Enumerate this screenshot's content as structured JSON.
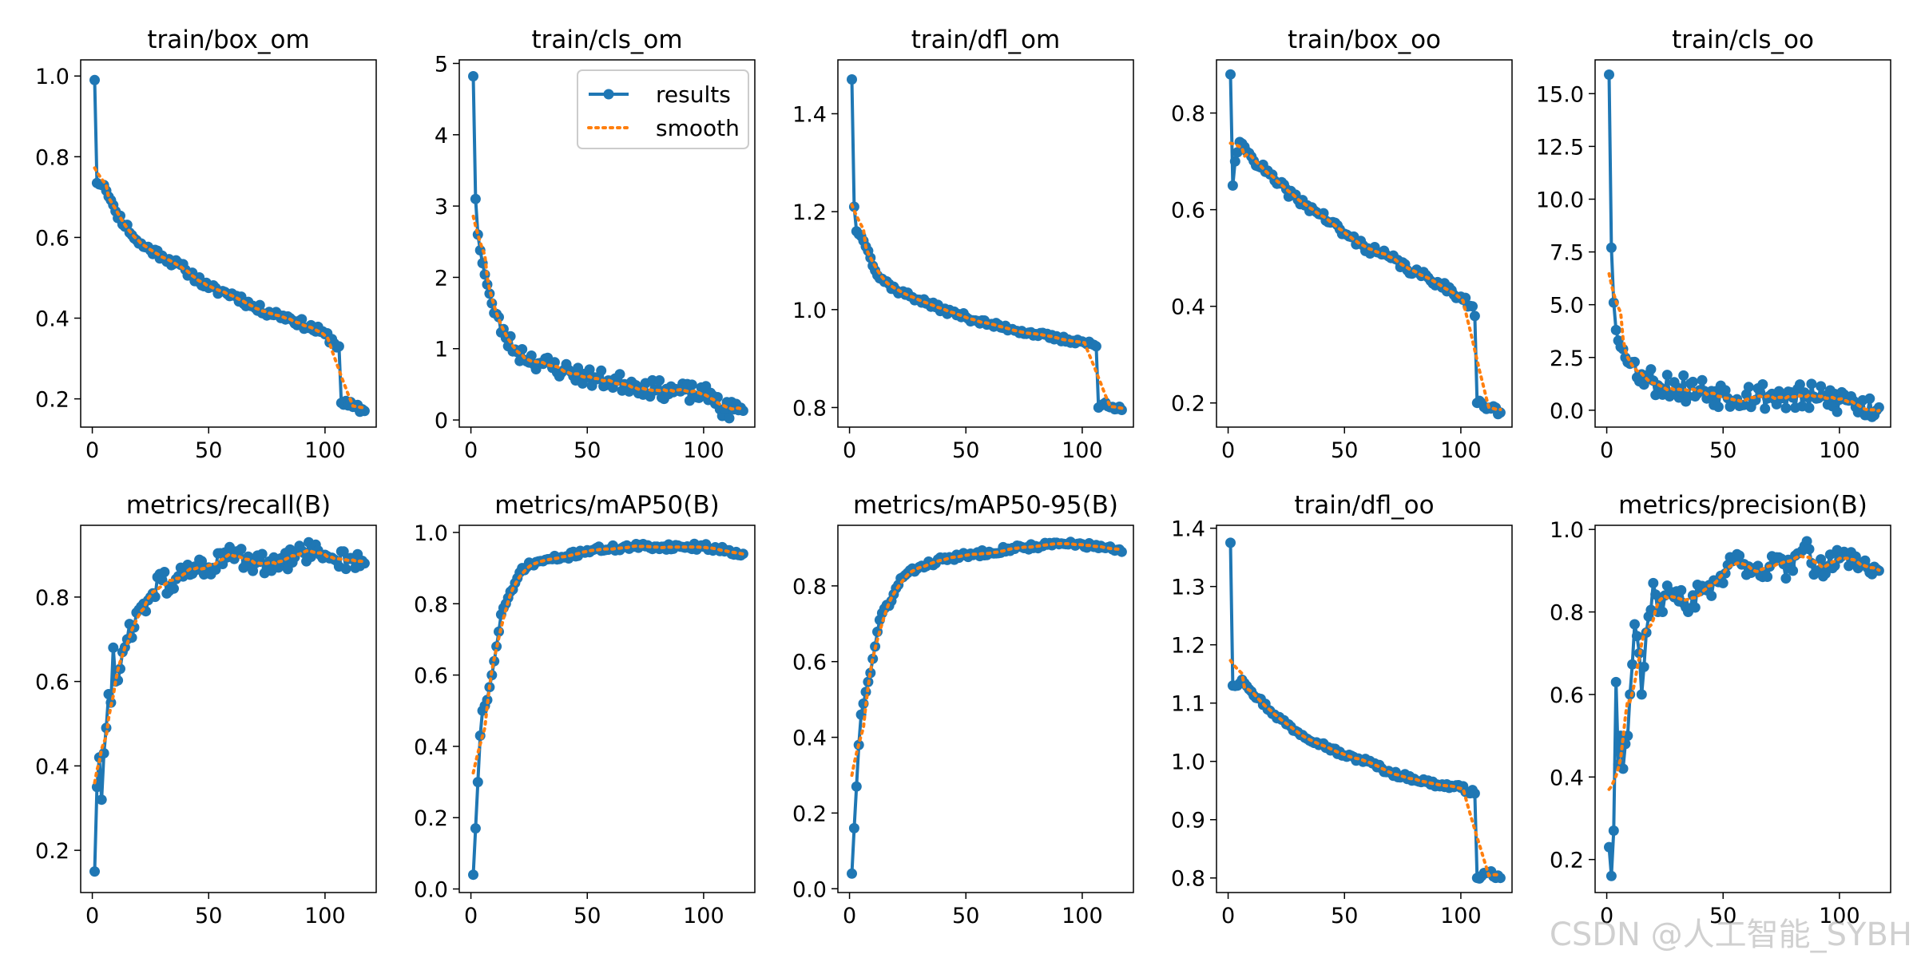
{
  "watermark": "CSDN @人工智能_SYBH",
  "legend": {
    "results_label": "results",
    "smooth_label": "smooth"
  },
  "colors": {
    "results": "#1f77b4",
    "smooth": "#ff7f0e",
    "axis": "#000000"
  },
  "chart_data": [
    {
      "type": "line",
      "title": "train/box_om",
      "xlim": [
        -5,
        122
      ],
      "ylim": [
        0.13,
        1.04
      ],
      "xticks": [
        0,
        50,
        100
      ],
      "yticks": [
        0.2,
        0.4,
        0.6,
        0.8,
        1.0
      ],
      "ytick_labels": [
        "0.2",
        "0.4",
        "0.6",
        "0.8",
        "1.0"
      ],
      "legend": false,
      "seed": 11,
      "noise": 0.012,
      "anchors": [
        [
          1,
          0.99
        ],
        [
          2,
          0.735
        ],
        [
          5,
          0.73
        ],
        [
          10,
          0.665
        ],
        [
          20,
          0.585
        ],
        [
          30,
          0.555
        ],
        [
          40,
          0.52
        ],
        [
          50,
          0.475
        ],
        [
          62,
          0.455
        ],
        [
          70,
          0.425
        ],
        [
          85,
          0.4
        ],
        [
          100,
          0.36
        ],
        [
          106,
          0.33
        ],
        [
          107,
          0.19
        ],
        [
          112,
          0.18
        ],
        [
          117,
          0.17
        ]
      ]
    },
    {
      "type": "line",
      "title": "train/cls_om",
      "xlim": [
        -5,
        122
      ],
      "ylim": [
        -0.1,
        5.05
      ],
      "xticks": [
        0,
        50,
        100
      ],
      "yticks": [
        0,
        1,
        2,
        3,
        4,
        5
      ],
      "ytick_labels": [
        "0",
        "1",
        "2",
        "3",
        "4",
        "5"
      ],
      "legend": true,
      "seed": 23,
      "noise": 0.025,
      "anchors": [
        [
          1,
          4.82
        ],
        [
          2,
          3.1
        ],
        [
          3,
          2.6
        ],
        [
          5,
          2.2
        ],
        [
          7,
          1.9
        ],
        [
          10,
          1.5
        ],
        [
          15,
          1.15
        ],
        [
          20,
          0.95
        ],
        [
          30,
          0.8
        ],
        [
          40,
          0.7
        ],
        [
          50,
          0.6
        ],
        [
          60,
          0.55
        ],
        [
          70,
          0.5
        ],
        [
          80,
          0.43
        ],
        [
          90,
          0.4
        ],
        [
          100,
          0.35
        ],
        [
          106,
          0.32
        ],
        [
          107,
          0.15
        ],
        [
          117,
          0.13
        ]
      ]
    },
    {
      "type": "line",
      "title": "train/dfl_om",
      "xlim": [
        -5,
        122
      ],
      "ylim": [
        0.76,
        1.51
      ],
      "xticks": [
        0,
        50,
        100
      ],
      "yticks": [
        0.8,
        1.0,
        1.2,
        1.4
      ],
      "ytick_labels": [
        "0.8",
        "1.0",
        "1.2",
        "1.4"
      ],
      "legend": false,
      "seed": 37,
      "noise": 0.008,
      "anchors": [
        [
          1,
          1.47
        ],
        [
          2,
          1.21
        ],
        [
          3,
          1.16
        ],
        [
          5,
          1.15
        ],
        [
          8,
          1.12
        ],
        [
          12,
          1.07
        ],
        [
          20,
          1.04
        ],
        [
          30,
          1.02
        ],
        [
          40,
          1.0
        ],
        [
          50,
          0.985
        ],
        [
          60,
          0.97
        ],
        [
          70,
          0.96
        ],
        [
          80,
          0.95
        ],
        [
          90,
          0.94
        ],
        [
          100,
          0.935
        ],
        [
          106,
          0.925
        ],
        [
          107,
          0.8
        ],
        [
          110,
          0.81
        ],
        [
          117,
          0.795
        ]
      ]
    },
    {
      "type": "line",
      "title": "train/box_oo",
      "xlim": [
        -5,
        122
      ],
      "ylim": [
        0.15,
        0.91
      ],
      "xticks": [
        0,
        50,
        100
      ],
      "yticks": [
        0.2,
        0.4,
        0.6,
        0.8
      ],
      "ytick_labels": [
        "0.2",
        "0.4",
        "0.6",
        "0.8"
      ],
      "legend": false,
      "seed": 41,
      "noise": 0.012,
      "anchors": [
        [
          1,
          0.88
        ],
        [
          2,
          0.65
        ],
        [
          3,
          0.7
        ],
        [
          5,
          0.74
        ],
        [
          10,
          0.71
        ],
        [
          20,
          0.66
        ],
        [
          30,
          0.62
        ],
        [
          40,
          0.59
        ],
        [
          50,
          0.55
        ],
        [
          60,
          0.52
        ],
        [
          70,
          0.5
        ],
        [
          80,
          0.47
        ],
        [
          90,
          0.45
        ],
        [
          100,
          0.42
        ],
        [
          105,
          0.4
        ],
        [
          106,
          0.38
        ],
        [
          107,
          0.2
        ],
        [
          112,
          0.19
        ],
        [
          117,
          0.18
        ]
      ]
    },
    {
      "type": "line",
      "title": "train/cls_oo",
      "xlim": [
        -5,
        122
      ],
      "ylim": [
        -0.8,
        16.6
      ],
      "xticks": [
        0,
        50,
        100
      ],
      "yticks": [
        0,
        2.5,
        5,
        7.5,
        10,
        12.5,
        15
      ],
      "ytick_labels": [
        "0.0",
        "2.5",
        "5.0",
        "7.5",
        "10.0",
        "12.5",
        "15.0"
      ],
      "legend": false,
      "seed": 53,
      "noise": 0.04,
      "anchors": [
        [
          1,
          15.9
        ],
        [
          2,
          7.7
        ],
        [
          3,
          5.1
        ],
        [
          4,
          3.8
        ],
        [
          5,
          3.3
        ],
        [
          7,
          2.9
        ],
        [
          10,
          2.2
        ],
        [
          15,
          1.7
        ],
        [
          20,
          1.4
        ],
        [
          30,
          1.1
        ],
        [
          40,
          0.95
        ],
        [
          50,
          0.82
        ],
        [
          60,
          0.75
        ],
        [
          70,
          0.68
        ],
        [
          80,
          0.6
        ],
        [
          90,
          0.55
        ],
        [
          100,
          0.5
        ],
        [
          106,
          0.45
        ],
        [
          107,
          0.15
        ],
        [
          117,
          0.13
        ]
      ]
    },
    {
      "type": "line",
      "title": "metrics/recall(B)",
      "xlim": [
        -5,
        122
      ],
      "ylim": [
        0.1,
        0.97
      ],
      "xticks": [
        0,
        50,
        100
      ],
      "yticks": [
        0.2,
        0.4,
        0.6,
        0.8
      ],
      "ytick_labels": [
        "0.2",
        "0.4",
        "0.6",
        "0.8"
      ],
      "legend": false,
      "seed": 61,
      "noise": 0.03,
      "anchors": [
        [
          1,
          0.15
        ],
        [
          2,
          0.35
        ],
        [
          3,
          0.42
        ],
        [
          4,
          0.32
        ],
        [
          5,
          0.43
        ],
        [
          6,
          0.49
        ],
        [
          7,
          0.57
        ],
        [
          8,
          0.55
        ],
        [
          9,
          0.68
        ],
        [
          10,
          0.6
        ],
        [
          12,
          0.63
        ],
        [
          15,
          0.7
        ],
        [
          20,
          0.77
        ],
        [
          25,
          0.8
        ],
        [
          30,
          0.84
        ],
        [
          35,
          0.82
        ],
        [
          40,
          0.87
        ],
        [
          50,
          0.87
        ],
        [
          60,
          0.9
        ],
        [
          70,
          0.88
        ],
        [
          80,
          0.87
        ],
        [
          90,
          0.91
        ],
        [
          100,
          0.9
        ],
        [
          110,
          0.89
        ],
        [
          117,
          0.88
        ]
      ]
    },
    {
      "type": "line",
      "title": "metrics/mAP50(B)",
      "xlim": [
        -5,
        122
      ],
      "ylim": [
        -0.01,
        1.02
      ],
      "xticks": [
        0,
        50,
        100
      ],
      "yticks": [
        0,
        0.2,
        0.4,
        0.6,
        0.8,
        1.0
      ],
      "ytick_labels": [
        "0.0",
        "0.2",
        "0.4",
        "0.6",
        "0.8",
        "1.0"
      ],
      "legend": false,
      "seed": 71,
      "noise": 0.008,
      "anchors": [
        [
          1,
          0.04
        ],
        [
          2,
          0.17
        ],
        [
          3,
          0.3
        ],
        [
          4,
          0.43
        ],
        [
          5,
          0.5
        ],
        [
          7,
          0.53
        ],
        [
          9,
          0.6
        ],
        [
          11,
          0.68
        ],
        [
          13,
          0.77
        ],
        [
          15,
          0.8
        ],
        [
          18,
          0.84
        ],
        [
          22,
          0.9
        ],
        [
          30,
          0.92
        ],
        [
          40,
          0.93
        ],
        [
          50,
          0.95
        ],
        [
          60,
          0.955
        ],
        [
          70,
          0.96
        ],
        [
          80,
          0.96
        ],
        [
          90,
          0.96
        ],
        [
          100,
          0.96
        ],
        [
          110,
          0.95
        ],
        [
          117,
          0.94
        ]
      ]
    },
    {
      "type": "line",
      "title": "metrics/mAP50-95(B)",
      "xlim": [
        -5,
        122
      ],
      "ylim": [
        -0.01,
        0.96
      ],
      "xticks": [
        0,
        50,
        100
      ],
      "yticks": [
        0,
        0.2,
        0.4,
        0.6,
        0.8
      ],
      "ytick_labels": [
        "0.0",
        "0.2",
        "0.4",
        "0.6",
        "0.8"
      ],
      "legend": false,
      "seed": 83,
      "noise": 0.008,
      "anchors": [
        [
          1,
          0.04
        ],
        [
          2,
          0.16
        ],
        [
          3,
          0.27
        ],
        [
          4,
          0.38
        ],
        [
          5,
          0.46
        ],
        [
          7,
          0.52
        ],
        [
          9,
          0.57
        ],
        [
          11,
          0.64
        ],
        [
          13,
          0.71
        ],
        [
          15,
          0.74
        ],
        [
          18,
          0.76
        ],
        [
          22,
          0.82
        ],
        [
          30,
          0.85
        ],
        [
          40,
          0.87
        ],
        [
          50,
          0.88
        ],
        [
          60,
          0.89
        ],
        [
          70,
          0.9
        ],
        [
          80,
          0.905
        ],
        [
          90,
          0.91
        ],
        [
          100,
          0.91
        ],
        [
          110,
          0.9
        ],
        [
          117,
          0.89
        ]
      ]
    },
    {
      "type": "line",
      "title": "train/dfl_oo",
      "xlim": [
        -5,
        122
      ],
      "ylim": [
        0.775,
        1.405
      ],
      "xticks": [
        0,
        50,
        100
      ],
      "yticks": [
        0.8,
        0.9,
        1.0,
        1.1,
        1.2,
        1.3,
        1.4
      ],
      "ytick_labels": [
        "0.8",
        "0.9",
        "1.0",
        "1.1",
        "1.2",
        "1.3",
        "1.4"
      ],
      "legend": false,
      "seed": 97,
      "noise": 0.007,
      "anchors": [
        [
          1,
          1.375
        ],
        [
          2,
          1.13
        ],
        [
          4,
          1.13
        ],
        [
          6,
          1.14
        ],
        [
          10,
          1.12
        ],
        [
          20,
          1.08
        ],
        [
          30,
          1.05
        ],
        [
          40,
          1.03
        ],
        [
          50,
          1.01
        ],
        [
          60,
          1.0
        ],
        [
          70,
          0.98
        ],
        [
          80,
          0.97
        ],
        [
          90,
          0.96
        ],
        [
          100,
          0.955
        ],
        [
          106,
          0.945
        ],
        [
          107,
          0.8
        ],
        [
          112,
          0.81
        ],
        [
          117,
          0.8
        ]
      ]
    },
    {
      "type": "line",
      "title": "metrics/precision(B)",
      "xlim": [
        -5,
        122
      ],
      "ylim": [
        0.12,
        1.01
      ],
      "xticks": [
        0,
        50,
        100
      ],
      "yticks": [
        0.2,
        0.4,
        0.6,
        0.8,
        1.0
      ],
      "ytick_labels": [
        "0.2",
        "0.4",
        "0.6",
        "0.8",
        "1.0"
      ],
      "legend": false,
      "seed": 103,
      "noise": 0.03,
      "anchors": [
        [
          1,
          0.23
        ],
        [
          2,
          0.16
        ],
        [
          3,
          0.27
        ],
        [
          4,
          0.63
        ],
        [
          5,
          0.43
        ],
        [
          6,
          0.5
        ],
        [
          7,
          0.42
        ],
        [
          8,
          0.48
        ],
        [
          9,
          0.5
        ],
        [
          10,
          0.6
        ],
        [
          12,
          0.77
        ],
        [
          14,
          0.7
        ],
        [
          15,
          0.6
        ],
        [
          17,
          0.75
        ],
        [
          20,
          0.87
        ],
        [
          22,
          0.8
        ],
        [
          25,
          0.84
        ],
        [
          30,
          0.85
        ],
        [
          35,
          0.8
        ],
        [
          40,
          0.85
        ],
        [
          50,
          0.87
        ],
        [
          55,
          0.93
        ],
        [
          60,
          0.89
        ],
        [
          70,
          0.91
        ],
        [
          80,
          0.9
        ],
        [
          85,
          0.96
        ],
        [
          90,
          0.9
        ],
        [
          100,
          0.93
        ],
        [
          110,
          0.92
        ],
        [
          117,
          0.9
        ]
      ]
    }
  ]
}
